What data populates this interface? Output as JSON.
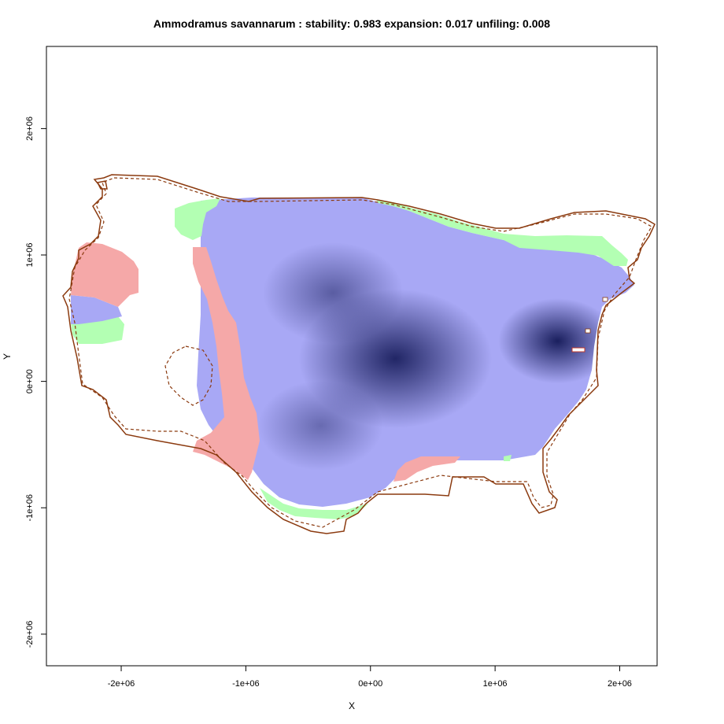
{
  "chart_data": {
    "type": "heatmap",
    "title": "Ammodramus savannarum : stability: 0.983 expansion: 0.017 unfiling: 0.008",
    "xlabel": "X",
    "ylabel": "Y",
    "xlim": [
      -2600000,
      2300000
    ],
    "ylim": [
      -2250000,
      2650000
    ],
    "x_ticks": [
      {
        "value": -2000000,
        "label": "-2e+06"
      },
      {
        "value": -1000000,
        "label": "-1e+06"
      },
      {
        "value": 0,
        "label": "0e+00"
      },
      {
        "value": 1000000,
        "label": "1e+06"
      },
      {
        "value": 2000000,
        "label": "2e+06"
      }
    ],
    "y_ticks": [
      {
        "value": -2000000,
        "label": "-2e+06"
      },
      {
        "value": -1000000,
        "label": "-1e+06"
      },
      {
        "value": 0,
        "label": "0e+00"
      },
      {
        "value": 1000000,
        "label": "1e+06"
      },
      {
        "value": 2000000,
        "label": "2e+06"
      }
    ],
    "metrics": {
      "stability": 0.983,
      "expansion": 0.017,
      "unfilling": 0.008
    },
    "colors": {
      "stability_low": "#a8a8f5",
      "stability_high": "#1a1f5e",
      "expansion": "#b3ffb3",
      "unfilling": "#f5a8a8",
      "boundary": "#8b3a0f"
    },
    "density_peaks": [
      {
        "x": 1500000,
        "y": 320000,
        "weight": 1.0,
        "spread": 380000
      },
      {
        "x": 200000,
        "y": 180000,
        "weight": 0.95,
        "spread": 620000
      },
      {
        "x": -300000,
        "y": 700000,
        "weight": 0.55,
        "spread": 450000
      },
      {
        "x": -400000,
        "y": -350000,
        "weight": 0.45,
        "spread": 400000
      }
    ],
    "grid": false,
    "legend": "none"
  }
}
